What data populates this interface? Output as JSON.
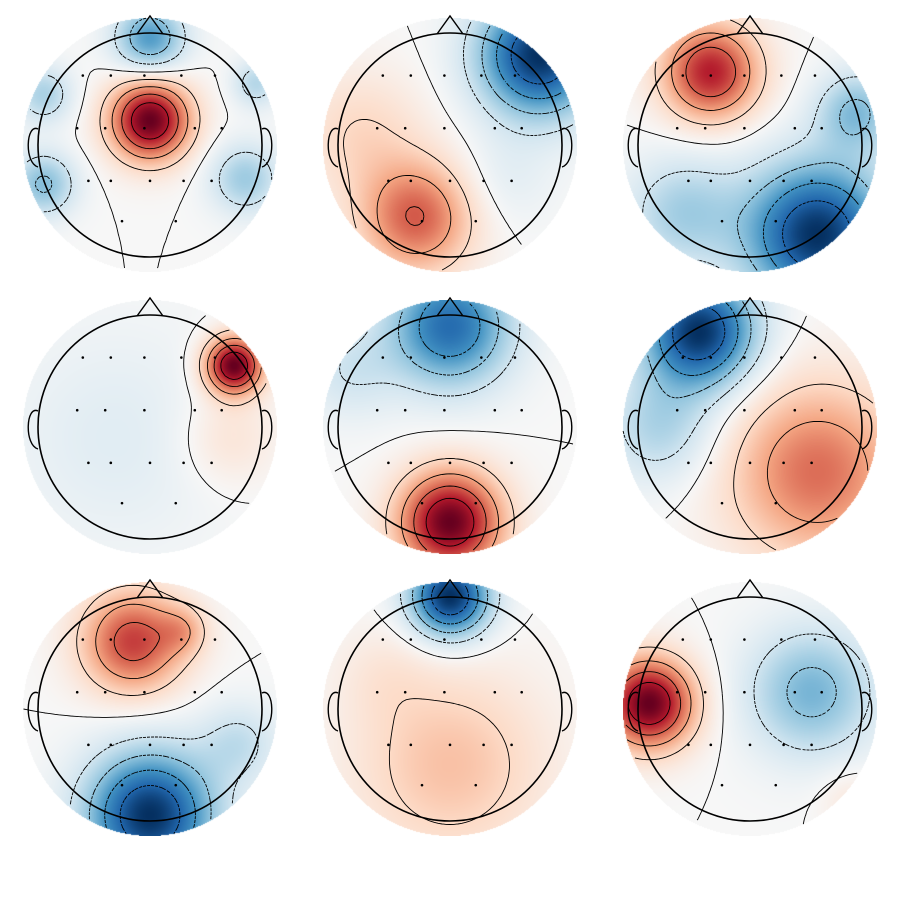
{
  "chart_data": {
    "type": "heatmap",
    "layout": {
      "rows": 3,
      "cols": 3
    },
    "colormap": {
      "negative": "#053061",
      "mid": "#f7f7f7",
      "positive": "#67001f"
    },
    "contour_lines": true,
    "sensor_markers": true,
    "maps": [
      {
        "name": "topomap-1",
        "sources": [
          {
            "x": 0.0,
            "y": 0.22,
            "w": 2.8,
            "s": 0.25
          },
          {
            "x": 0.0,
            "y": 0.95,
            "w": -1.6,
            "s": 0.22
          },
          {
            "x": -0.95,
            "y": -0.35,
            "w": -1.2,
            "s": 0.2
          },
          {
            "x": 0.85,
            "y": -0.3,
            "w": -1.0,
            "s": 0.22
          },
          {
            "x": -0.95,
            "y": 0.45,
            "w": -0.9,
            "s": 0.18
          },
          {
            "x": 0.95,
            "y": 0.55,
            "w": -0.8,
            "s": 0.15
          }
        ]
      },
      {
        "name": "topomap-2",
        "sources": [
          {
            "x": 0.8,
            "y": 0.8,
            "w": -2.0,
            "s": 0.38
          },
          {
            "x": -0.3,
            "y": -0.65,
            "w": 1.2,
            "s": 0.35
          },
          {
            "x": -0.8,
            "y": 0.1,
            "w": 0.4,
            "s": 0.4
          },
          {
            "x": 0.5,
            "y": -0.3,
            "w": -0.2,
            "s": 0.3
          }
        ]
      },
      {
        "name": "topomap-3",
        "sources": [
          {
            "x": -0.35,
            "y": 0.65,
            "w": 1.9,
            "s": 0.3
          },
          {
            "x": 0.6,
            "y": -0.8,
            "w": -2.4,
            "s": 0.45
          },
          {
            "x": 0.95,
            "y": 0.3,
            "w": -1.0,
            "s": 0.25
          },
          {
            "x": -0.6,
            "y": -0.6,
            "w": -0.8,
            "s": 0.35
          }
        ]
      },
      {
        "name": "topomap-4",
        "sources": [
          {
            "x": 0.75,
            "y": 0.55,
            "w": 2.6,
            "s": 0.18
          },
          {
            "x": 0.7,
            "y": -0.1,
            "w": 0.4,
            "s": 0.3
          },
          {
            "x": -0.3,
            "y": -0.1,
            "w": -0.3,
            "s": 0.7
          }
        ]
      },
      {
        "name": "topomap-5",
        "sources": [
          {
            "x": 0.0,
            "y": -0.85,
            "w": 2.6,
            "s": 0.32
          },
          {
            "x": 0.0,
            "y": 0.9,
            "w": -2.0,
            "s": 0.38
          },
          {
            "x": -0.9,
            "y": 0.5,
            "w": -0.5,
            "s": 0.3
          }
        ]
      },
      {
        "name": "topomap-6",
        "sources": [
          {
            "x": -0.45,
            "y": 0.85,
            "w": -1.6,
            "s": 0.35
          },
          {
            "x": 0.6,
            "y": -0.4,
            "w": 0.9,
            "s": 0.55
          },
          {
            "x": -0.8,
            "y": 0.0,
            "w": -0.5,
            "s": 0.35
          }
        ]
      },
      {
        "name": "topomap-7",
        "sources": [
          {
            "x": 0.0,
            "y": -0.95,
            "w": -2.6,
            "s": 0.4
          },
          {
            "x": -0.15,
            "y": 0.6,
            "w": 1.8,
            "s": 0.32
          },
          {
            "x": 0.3,
            "y": 0.7,
            "w": 0.6,
            "s": 0.15
          },
          {
            "x": 0.8,
            "y": -0.3,
            "w": -0.6,
            "s": 0.25
          }
        ]
      },
      {
        "name": "topomap-8",
        "sources": [
          {
            "x": 0.0,
            "y": 1.0,
            "w": -2.4,
            "s": 0.25
          },
          {
            "x": 0.0,
            "y": -0.5,
            "w": 0.7,
            "s": 0.6
          },
          {
            "x": -0.6,
            "y": 0.3,
            "w": 0.2,
            "s": 0.3
          }
        ]
      },
      {
        "name": "topomap-9",
        "sources": [
          {
            "x": -0.9,
            "y": 0.05,
            "w": 2.8,
            "s": 0.28
          },
          {
            "x": 0.55,
            "y": 0.15,
            "w": -1.3,
            "s": 0.4
          },
          {
            "x": 0.9,
            "y": -0.8,
            "w": 0.3,
            "s": 0.2
          }
        ]
      }
    ],
    "sensors": [
      [
        -0.6,
        0.62
      ],
      [
        -0.35,
        0.62
      ],
      [
        -0.05,
        0.62
      ],
      [
        0.28,
        0.62
      ],
      [
        0.58,
        0.62
      ],
      [
        -0.65,
        0.15
      ],
      [
        -0.4,
        0.15
      ],
      [
        -0.05,
        0.15
      ],
      [
        0.4,
        0.15
      ],
      [
        0.64,
        0.15
      ],
      [
        -0.55,
        -0.32
      ],
      [
        -0.35,
        -0.32
      ],
      [
        0.0,
        -0.32
      ],
      [
        0.3,
        -0.32
      ],
      [
        0.55,
        -0.32
      ],
      [
        -0.25,
        -0.68
      ],
      [
        0.23,
        -0.68
      ]
    ]
  }
}
